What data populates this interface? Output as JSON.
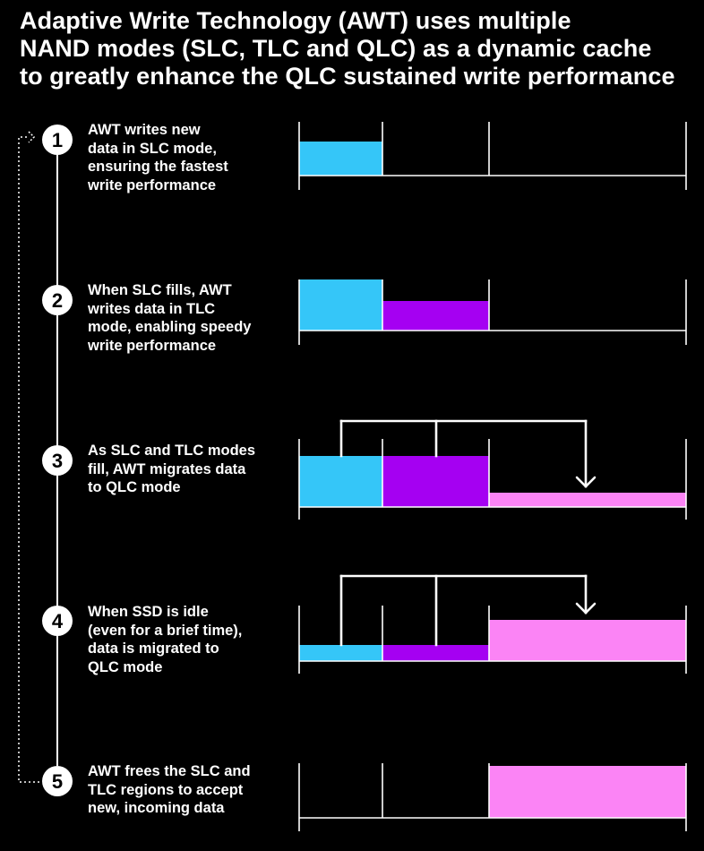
{
  "title_lines": [
    "Adaptive Write Technology (AWT) uses multiple",
    "NAND modes (SLC, TLC and QLC) as a dynamic cache",
    "to greatly enhance the QLC sustained write performance"
  ],
  "colors": {
    "slc": "#35c6f8",
    "tlc": "#a500f2",
    "qlc": "#fb84f5",
    "background": "#000000",
    "lines": "#ffffff"
  },
  "steps": [
    {
      "number": "1",
      "lines": [
        "AWT writes new",
        "data in SLC mode,",
        "ensuring the fastest",
        "write performance"
      ]
    },
    {
      "number": "2",
      "lines": [
        "When SLC fills, AWT",
        "writes data in TLC",
        "mode, enabling speedy",
        "write performance"
      ]
    },
    {
      "number": "3",
      "lines": [
        "As SLC and TLC modes",
        "fill, AWT migrates data",
        "to QLC mode"
      ]
    },
    {
      "number": "4",
      "lines": [
        "When SSD is idle",
        "(even for a brief time),",
        "data is migrated to",
        "QLC mode"
      ]
    },
    {
      "number": "5",
      "lines": [
        "AWT frees the SLC and",
        "TLC regions to accept",
        "new, incoming data"
      ]
    }
  ]
}
